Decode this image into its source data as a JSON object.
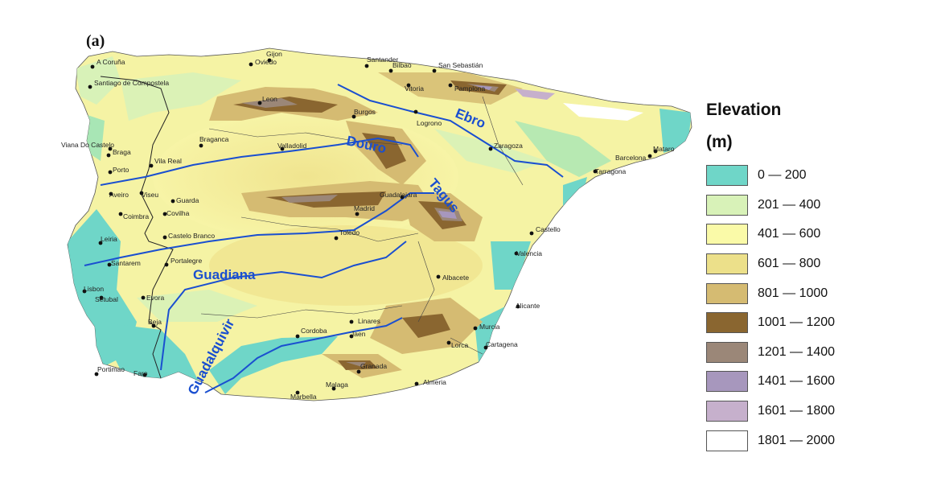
{
  "panel_label": "(a)",
  "legend": {
    "title": "Elevation",
    "unit": "(m)",
    "classes": [
      {
        "label": "0 — 200",
        "color": "#6fd6c8"
      },
      {
        "label": "201 — 400",
        "color": "#d8f2b8"
      },
      {
        "label": "401 — 600",
        "color": "#fafaa8"
      },
      {
        "label": "601 — 800",
        "color": "#ece08a"
      },
      {
        "label": "801 — 1000",
        "color": "#d5bb72"
      },
      {
        "label": "1001 — 1200",
        "color": "#8a6630"
      },
      {
        "label": "1201 — 1400",
        "color": "#9b8778"
      },
      {
        "label": "1401 — 1600",
        "color": "#a797bd"
      },
      {
        "label": "1601 — 1800",
        "color": "#c6b0cc"
      },
      {
        "label": "1801 — 2000",
        "color": "#ffffff"
      }
    ]
  },
  "rivers": [
    "Ebro",
    "Douro",
    "Tagus",
    "Guadiana",
    "Guadalquivir"
  ],
  "cities": [
    "Gijon",
    "A Coruña",
    "Oviedo",
    "Santander",
    "Bilbao",
    "San Sebastián",
    "Santiago de Compostela",
    "Vitoria",
    "Pamplona",
    "Leon",
    "Burgos",
    "Logrono",
    "Braganca",
    "Viana Do Castelo",
    "Braga",
    "Valladolid",
    "Zaragoza",
    "Barcelona",
    "Mataro",
    "Vila Real",
    "Porto",
    "Tarragona",
    "Aveiro",
    "Viseu",
    "Guarda",
    "Guadalajara",
    "Covilha",
    "Coimbra",
    "Madrid",
    "Castelo Branco",
    "Toledo",
    "Leiria",
    "Castello",
    "Santarem",
    "Portalegre",
    "Valencia",
    "Lisbon",
    "Setubal",
    "Evora",
    "Albacete",
    "Alicante",
    "Beja",
    "Linares",
    "Cordoba",
    "Jaen",
    "Murcia",
    "Lorca",
    "Cartagena",
    "Portimao",
    "Faro",
    "Granada",
    "Almeria",
    "Malaga",
    "Marbella"
  ]
}
